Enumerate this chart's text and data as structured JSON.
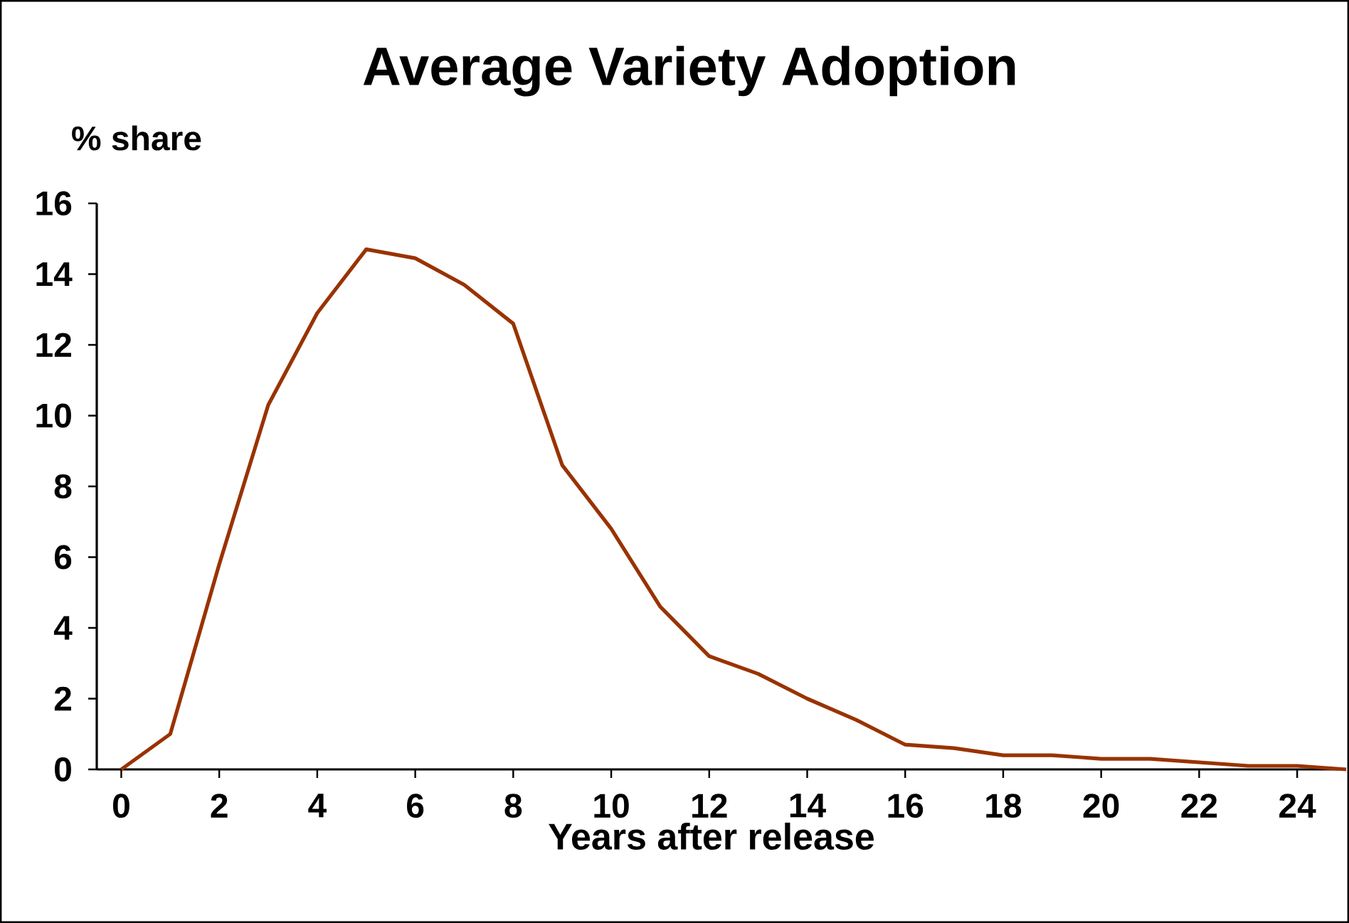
{
  "chart_data": {
    "type": "line",
    "title": "Average Variety Adoption",
    "ylabel": "% share",
    "xlabel": "Years after release",
    "x": [
      0,
      1,
      2,
      3,
      4,
      5,
      6,
      7,
      8,
      9,
      10,
      11,
      12,
      13,
      14,
      15,
      16,
      17,
      18,
      19,
      20,
      21,
      22,
      23,
      24,
      25
    ],
    "values": [
      0,
      1.0,
      5.8,
      10.3,
      12.9,
      14.7,
      14.45,
      13.7,
      12.6,
      8.6,
      6.8,
      4.6,
      3.2,
      2.7,
      2.0,
      1.4,
      0.7,
      0.6,
      0.4,
      0.4,
      0.3,
      0.3,
      0.2,
      0.1,
      0.1,
      0.0
    ],
    "color": "#993300",
    "line_style": "solid",
    "marker": "none",
    "xlim": [
      -0.5,
      25
    ],
    "ylim": [
      0,
      16
    ],
    "xticks": [
      0,
      2,
      4,
      6,
      8,
      10,
      12,
      14,
      16,
      18,
      20,
      22,
      24
    ],
    "yticks": [
      0,
      2,
      4,
      6,
      8,
      10,
      12,
      14,
      16
    ]
  }
}
